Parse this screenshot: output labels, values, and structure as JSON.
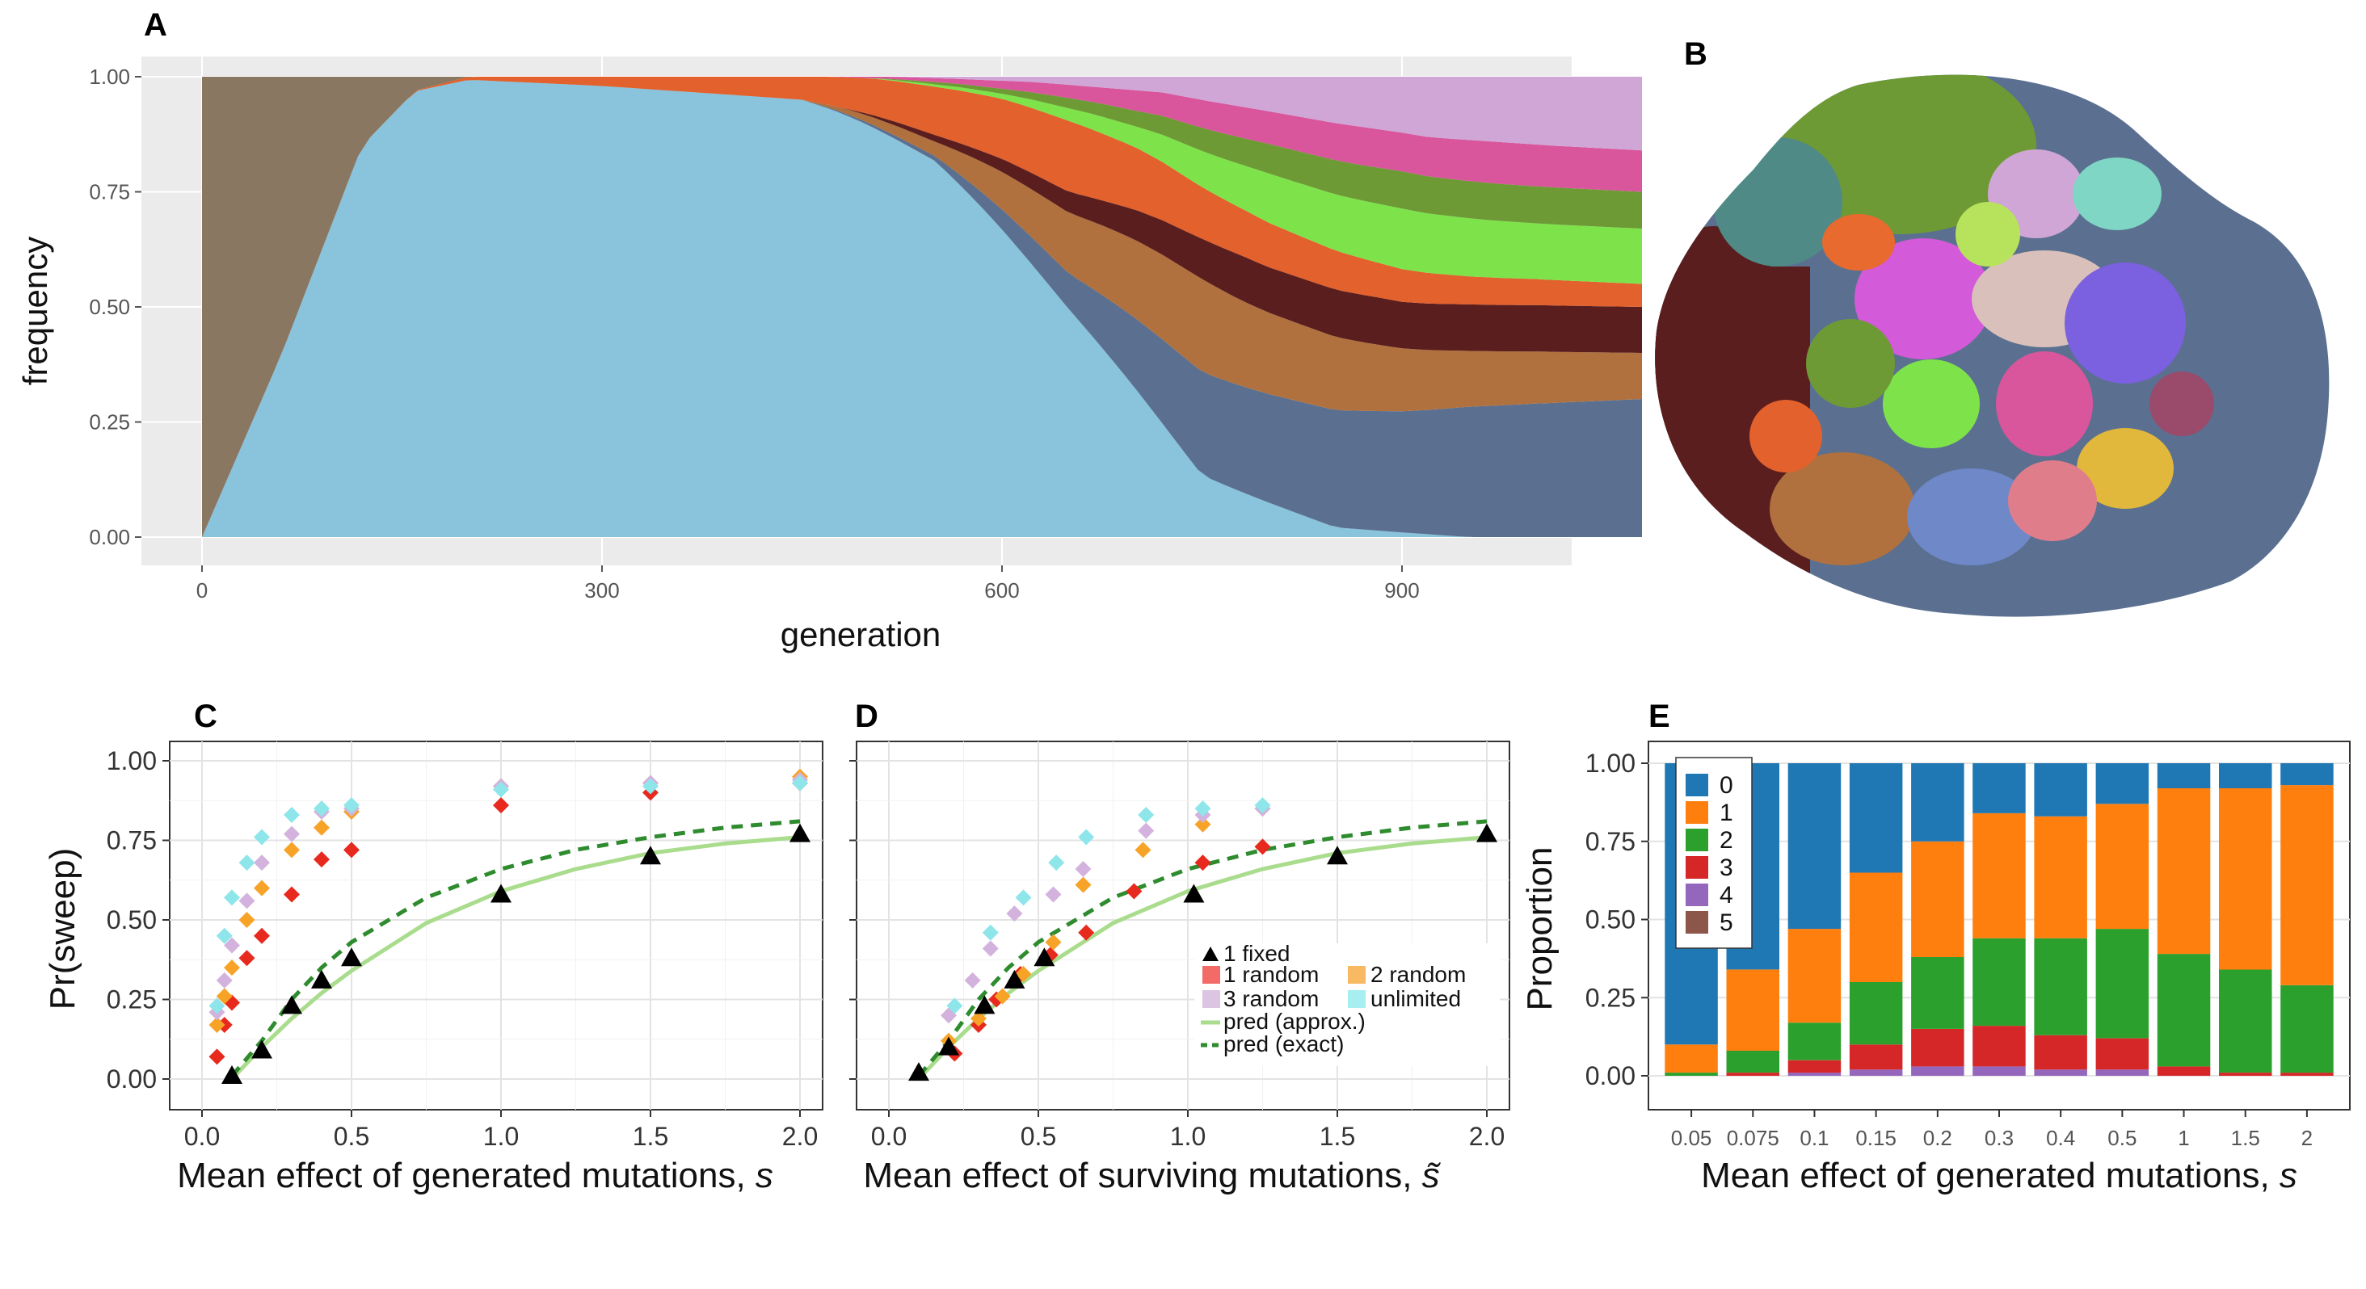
{
  "panels": {
    "A": "A",
    "B": "B",
    "C": "C",
    "D": "D",
    "E": "E"
  },
  "colors": {
    "ggplot_bg": "#ebebeb",
    "grid_major": "#ffffff",
    "clone_brown": "#8a7762",
    "clone_blue": "#89c3dc",
    "clone_orange": "#e2612c",
    "clone_slate": "#5b7090",
    "clone_tan": "#b0713e",
    "clone_green": "#6e9a36",
    "clone_lime": "#7ee34a",
    "clone_maroon": "#5b1e1e",
    "clone_pink": "#d9559c",
    "clone_lavender": "#cfa6d6",
    "e_0": "#1f77b4",
    "e_1": "#ff7f0e",
    "e_2": "#2ca02c",
    "e_3": "#d62728",
    "e_4": "#9467bd",
    "e_5": "#8c564b",
    "fixed": "#000000",
    "random1": "#e8291e",
    "random2": "#f7a328",
    "random3": "#d3b3dd",
    "unlimited": "#8ee6ea",
    "pred_approx": "#a9dc8c",
    "pred_exact": "#2e8b2e"
  },
  "chart_data": [
    {
      "id": "A",
      "type": "area",
      "xlabel": "generation",
      "ylabel": "frequency",
      "xlim": [
        0,
        1080
      ],
      "ylim": [
        0,
        1
      ],
      "xticks": [
        "0",
        "300",
        "600",
        "900"
      ],
      "xtick_values": [
        0,
        300,
        600,
        900
      ],
      "yticks": [
        "0.00",
        "0.25",
        "0.50",
        "0.75",
        "1.00"
      ],
      "ytick_values": [
        0,
        0.25,
        0.5,
        0.75,
        1.0
      ],
      "grid": true,
      "series": [
        {
          "color_key": "clone_brown",
          "x": [
            0,
            60,
            120,
            160,
            200,
            1080
          ],
          "values": [
            1.0,
            0.6,
            0.15,
            0.03,
            0.0,
            0.0
          ]
        },
        {
          "color_key": "clone_blue",
          "x": [
            0,
            60,
            120,
            160,
            200,
            300,
            450,
            550,
            650,
            750,
            850,
            950,
            1080
          ],
          "values": [
            0.0,
            0.4,
            0.85,
            0.97,
            1.0,
            0.98,
            0.95,
            0.78,
            0.45,
            0.12,
            0.02,
            0.0,
            0.0
          ]
        },
        {
          "color_key": "clone_orange",
          "x": [
            0,
            150,
            300,
            450,
            550,
            650,
            750,
            850,
            950,
            1080
          ],
          "values": [
            0.0,
            0.0,
            0.02,
            0.05,
            0.1,
            0.14,
            0.1,
            0.08,
            0.06,
            0.05
          ]
        },
        {
          "color_key": "clone_tan",
          "x": [
            0,
            450,
            550,
            650,
            750,
            850,
            950,
            1080
          ],
          "values": [
            0.0,
            0.0,
            0.03,
            0.12,
            0.18,
            0.15,
            0.12,
            0.1
          ]
        },
        {
          "color_key": "clone_green",
          "x": [
            0,
            500,
            600,
            700,
            800,
            900,
            1000,
            1080
          ],
          "values": [
            0.0,
            0.0,
            0.01,
            0.03,
            0.06,
            0.08,
            0.08,
            0.08
          ]
        },
        {
          "color_key": "clone_maroon",
          "x": [
            0,
            480,
            580,
            680,
            780,
            880,
            980,
            1080
          ],
          "values": [
            0.0,
            0.0,
            0.02,
            0.05,
            0.09,
            0.1,
            0.1,
            0.1
          ]
        },
        {
          "color_key": "clone_pink",
          "x": [
            0,
            470,
            570,
            670,
            770,
            870,
            970,
            1080
          ],
          "values": [
            0.0,
            0.0,
            0.01,
            0.03,
            0.06,
            0.08,
            0.09,
            0.09
          ]
        },
        {
          "color_key": "clone_lime",
          "x": [
            0,
            500,
            600,
            700,
            800,
            900,
            1000,
            1080
          ],
          "values": [
            0.0,
            0.0,
            0.01,
            0.04,
            0.1,
            0.13,
            0.12,
            0.12
          ]
        },
        {
          "color_key": "clone_lavender",
          "x": [
            0,
            520,
            620,
            720,
            820,
            920,
            1020,
            1080
          ],
          "values": [
            0.0,
            0.0,
            0.01,
            0.03,
            0.08,
            0.13,
            0.15,
            0.16
          ]
        },
        {
          "color_key": "clone_slate",
          "x": [
            0,
            450,
            550,
            650,
            750,
            850,
            950,
            1080
          ],
          "values": [
            0.0,
            0.0,
            0.01,
            0.07,
            0.2,
            0.24,
            0.28,
            0.3
          ]
        }
      ]
    },
    {
      "id": "C",
      "type": "scatter",
      "xlabel_prefix": "Mean effect of generated mutations, ",
      "xlabel_symbol": "s",
      "ylabel": "Pr(sweep)",
      "xlim": [
        -0.08,
        2.08
      ],
      "ylim": [
        -0.03,
        1.03
      ],
      "xticks": [
        "0.0",
        "0.5",
        "1.0",
        "1.5",
        "2.0"
      ],
      "xtick_values": [
        0,
        0.5,
        1.0,
        1.5,
        2.0
      ],
      "yticks": [
        "0.00",
        "0.25",
        "0.50",
        "0.75",
        "1.00"
      ],
      "ytick_values": [
        0,
        0.25,
        0.5,
        0.75,
        1.0
      ],
      "grid": true,
      "series": [
        {
          "color_key": "random1",
          "x": [
            0.05,
            0.075,
            0.1,
            0.15,
            0.2,
            0.3,
            0.4,
            0.5,
            1.0,
            1.5,
            2.0
          ],
          "values": [
            0.07,
            0.17,
            0.24,
            0.38,
            0.45,
            0.58,
            0.69,
            0.72,
            0.86,
            0.9,
            0.93
          ]
        },
        {
          "color_key": "random2",
          "x": [
            0.05,
            0.075,
            0.1,
            0.15,
            0.2,
            0.3,
            0.4,
            0.5,
            1.0,
            1.5,
            2.0
          ],
          "values": [
            0.17,
            0.26,
            0.35,
            0.5,
            0.6,
            0.72,
            0.79,
            0.84,
            0.92,
            0.93,
            0.95
          ]
        },
        {
          "color_key": "random3",
          "x": [
            0.05,
            0.075,
            0.1,
            0.15,
            0.2,
            0.3,
            0.4,
            0.5,
            1.0,
            1.5,
            2.0
          ],
          "values": [
            0.21,
            0.31,
            0.42,
            0.56,
            0.68,
            0.77,
            0.84,
            0.85,
            0.92,
            0.93,
            0.94
          ]
        },
        {
          "color_key": "unlimited",
          "x": [
            0.05,
            0.075,
            0.1,
            0.15,
            0.2,
            0.3,
            0.4,
            0.5,
            1.0,
            1.5,
            2.0
          ],
          "values": [
            0.23,
            0.45,
            0.57,
            0.68,
            0.76,
            0.83,
            0.85,
            0.86,
            0.91,
            0.92,
            0.93
          ]
        },
        {
          "color_key": "fixed",
          "x": [
            0.1,
            0.2,
            0.3,
            0.4,
            0.5,
            1.0,
            1.5,
            2.0
          ],
          "values": [
            0.01,
            0.09,
            0.23,
            0.31,
            0.38,
            0.58,
            0.7,
            0.77
          ]
        }
      ],
      "pred_approx": {
        "x": [
          0.1,
          0.2,
          0.3,
          0.4,
          0.5,
          0.75,
          1.0,
          1.25,
          1.5,
          1.75,
          2.0
        ],
        "values": [
          0.0,
          0.1,
          0.19,
          0.27,
          0.34,
          0.49,
          0.59,
          0.66,
          0.71,
          0.74,
          0.76
        ]
      },
      "pred_exact": {
        "x": [
          0.1,
          0.2,
          0.3,
          0.4,
          0.5,
          0.75,
          1.0,
          1.25,
          1.5,
          1.75,
          2.0
        ],
        "values": [
          0.01,
          0.12,
          0.25,
          0.35,
          0.43,
          0.57,
          0.66,
          0.72,
          0.76,
          0.79,
          0.81
        ]
      }
    },
    {
      "id": "D",
      "type": "scatter",
      "xlabel_prefix": "Mean effect of surviving mutations, ",
      "xlabel_symbol": "s̃",
      "ylabel": "",
      "xlim": [
        -0.08,
        2.08
      ],
      "ylim": [
        -0.03,
        1.03
      ],
      "xticks": [
        "0.0",
        "0.5",
        "1.0",
        "1.5",
        "2.0"
      ],
      "xtick_values": [
        0,
        0.5,
        1.0,
        1.5,
        2.0
      ],
      "grid": true,
      "legend": {
        "position": "bottom-right",
        "entries": [
          {
            "label": "1 fixed",
            "color_key": "fixed",
            "shape": "triangle"
          },
          {
            "label": "1 random",
            "color_key": "random1",
            "shape": "square"
          },
          {
            "label": "2 random",
            "color_key": "random2",
            "shape": "square"
          },
          {
            "label": "3 random",
            "color_key": "random3",
            "shape": "square"
          },
          {
            "label": "unlimited",
            "color_key": "unlimited",
            "shape": "square"
          },
          {
            "label": "pred (approx.)",
            "color_key": "pred_approx",
            "shape": "line"
          },
          {
            "label": "pred (exact)",
            "color_key": "pred_exact",
            "shape": "dashed"
          }
        ]
      },
      "series": [
        {
          "color_key": "random1",
          "x": [
            0.22,
            0.3,
            0.36,
            0.44,
            0.54,
            0.66,
            0.82,
            1.05,
            1.25
          ],
          "values": [
            0.08,
            0.17,
            0.25,
            0.33,
            0.39,
            0.46,
            0.59,
            0.68,
            0.73
          ]
        },
        {
          "color_key": "random2",
          "x": [
            0.2,
            0.3,
            0.38,
            0.45,
            0.55,
            0.65,
            0.85,
            1.05,
            1.25
          ],
          "values": [
            0.12,
            0.19,
            0.26,
            0.33,
            0.43,
            0.61,
            0.72,
            0.8,
            0.85
          ]
        },
        {
          "color_key": "random3",
          "x": [
            0.2,
            0.28,
            0.34,
            0.42,
            0.55,
            0.65,
            0.86,
            1.05,
            1.25
          ],
          "values": [
            0.2,
            0.31,
            0.41,
            0.52,
            0.58,
            0.66,
            0.78,
            0.83,
            0.85
          ]
        },
        {
          "color_key": "unlimited",
          "x": [
            0.22,
            0.34,
            0.45,
            0.56,
            0.66,
            0.86,
            1.05,
            1.25
          ],
          "values": [
            0.23,
            0.46,
            0.57,
            0.68,
            0.76,
            0.83,
            0.85,
            0.86
          ]
        },
        {
          "color_key": "fixed",
          "x": [
            0.1,
            0.2,
            0.32,
            0.42,
            0.52,
            1.02,
            1.5,
            2.0
          ],
          "values": [
            0.02,
            0.1,
            0.23,
            0.31,
            0.38,
            0.58,
            0.7,
            0.77
          ]
        }
      ],
      "pred_approx": {
        "x": [
          0.1,
          0.2,
          0.3,
          0.4,
          0.5,
          0.75,
          1.0,
          1.25,
          1.5,
          1.75,
          2.0
        ],
        "values": [
          0.0,
          0.1,
          0.19,
          0.27,
          0.34,
          0.49,
          0.59,
          0.66,
          0.71,
          0.74,
          0.76
        ]
      },
      "pred_exact": {
        "x": [
          0.1,
          0.2,
          0.3,
          0.4,
          0.5,
          0.75,
          1.0,
          1.25,
          1.5,
          1.75,
          2.0
        ],
        "values": [
          0.01,
          0.12,
          0.25,
          0.35,
          0.43,
          0.57,
          0.66,
          0.72,
          0.76,
          0.79,
          0.81
        ]
      }
    },
    {
      "id": "E",
      "type": "bar",
      "stacked": true,
      "xlabel_prefix": "Mean effect of generated mutations, ",
      "xlabel_symbol": "s",
      "ylabel": "Proportion",
      "ylim": [
        0,
        1
      ],
      "categories": [
        "0.05",
        "0.075",
        "0.1",
        "0.15",
        "0.2",
        "0.3",
        "0.4",
        "0.5",
        "1",
        "1.5",
        "2"
      ],
      "yticks": [
        "0.00",
        "0.25",
        "0.50",
        "0.75",
        "1.00"
      ],
      "ytick_values": [
        0,
        0.25,
        0.5,
        0.75,
        1.0
      ],
      "legend": {
        "position": "top-left",
        "entries": [
          "0",
          "1",
          "2",
          "3",
          "4",
          "5"
        ]
      },
      "series": [
        {
          "name": "5",
          "color_key": "e_5",
          "values": [
            0.0,
            0.0,
            0.0,
            0.0,
            0.0,
            0.0,
            0.0,
            0.0,
            0.0,
            0.0,
            0.0
          ]
        },
        {
          "name": "4",
          "color_key": "e_4",
          "values": [
            0.0,
            0.0,
            0.01,
            0.02,
            0.03,
            0.03,
            0.02,
            0.02,
            0.0,
            0.0,
            0.0
          ]
        },
        {
          "name": "3",
          "color_key": "e_3",
          "values": [
            0.0,
            0.01,
            0.04,
            0.08,
            0.12,
            0.13,
            0.11,
            0.1,
            0.03,
            0.01,
            0.01
          ]
        },
        {
          "name": "2",
          "color_key": "e_2",
          "values": [
            0.01,
            0.07,
            0.12,
            0.2,
            0.23,
            0.28,
            0.31,
            0.35,
            0.36,
            0.33,
            0.28
          ]
        },
        {
          "name": "1",
          "color_key": "e_1",
          "values": [
            0.09,
            0.26,
            0.3,
            0.35,
            0.37,
            0.4,
            0.39,
            0.4,
            0.53,
            0.58,
            0.64
          ]
        },
        {
          "name": "0",
          "color_key": "e_0",
          "values": [
            0.9,
            0.66,
            0.53,
            0.35,
            0.25,
            0.16,
            0.17,
            0.13,
            0.08,
            0.08,
            0.07
          ]
        }
      ]
    }
  ]
}
